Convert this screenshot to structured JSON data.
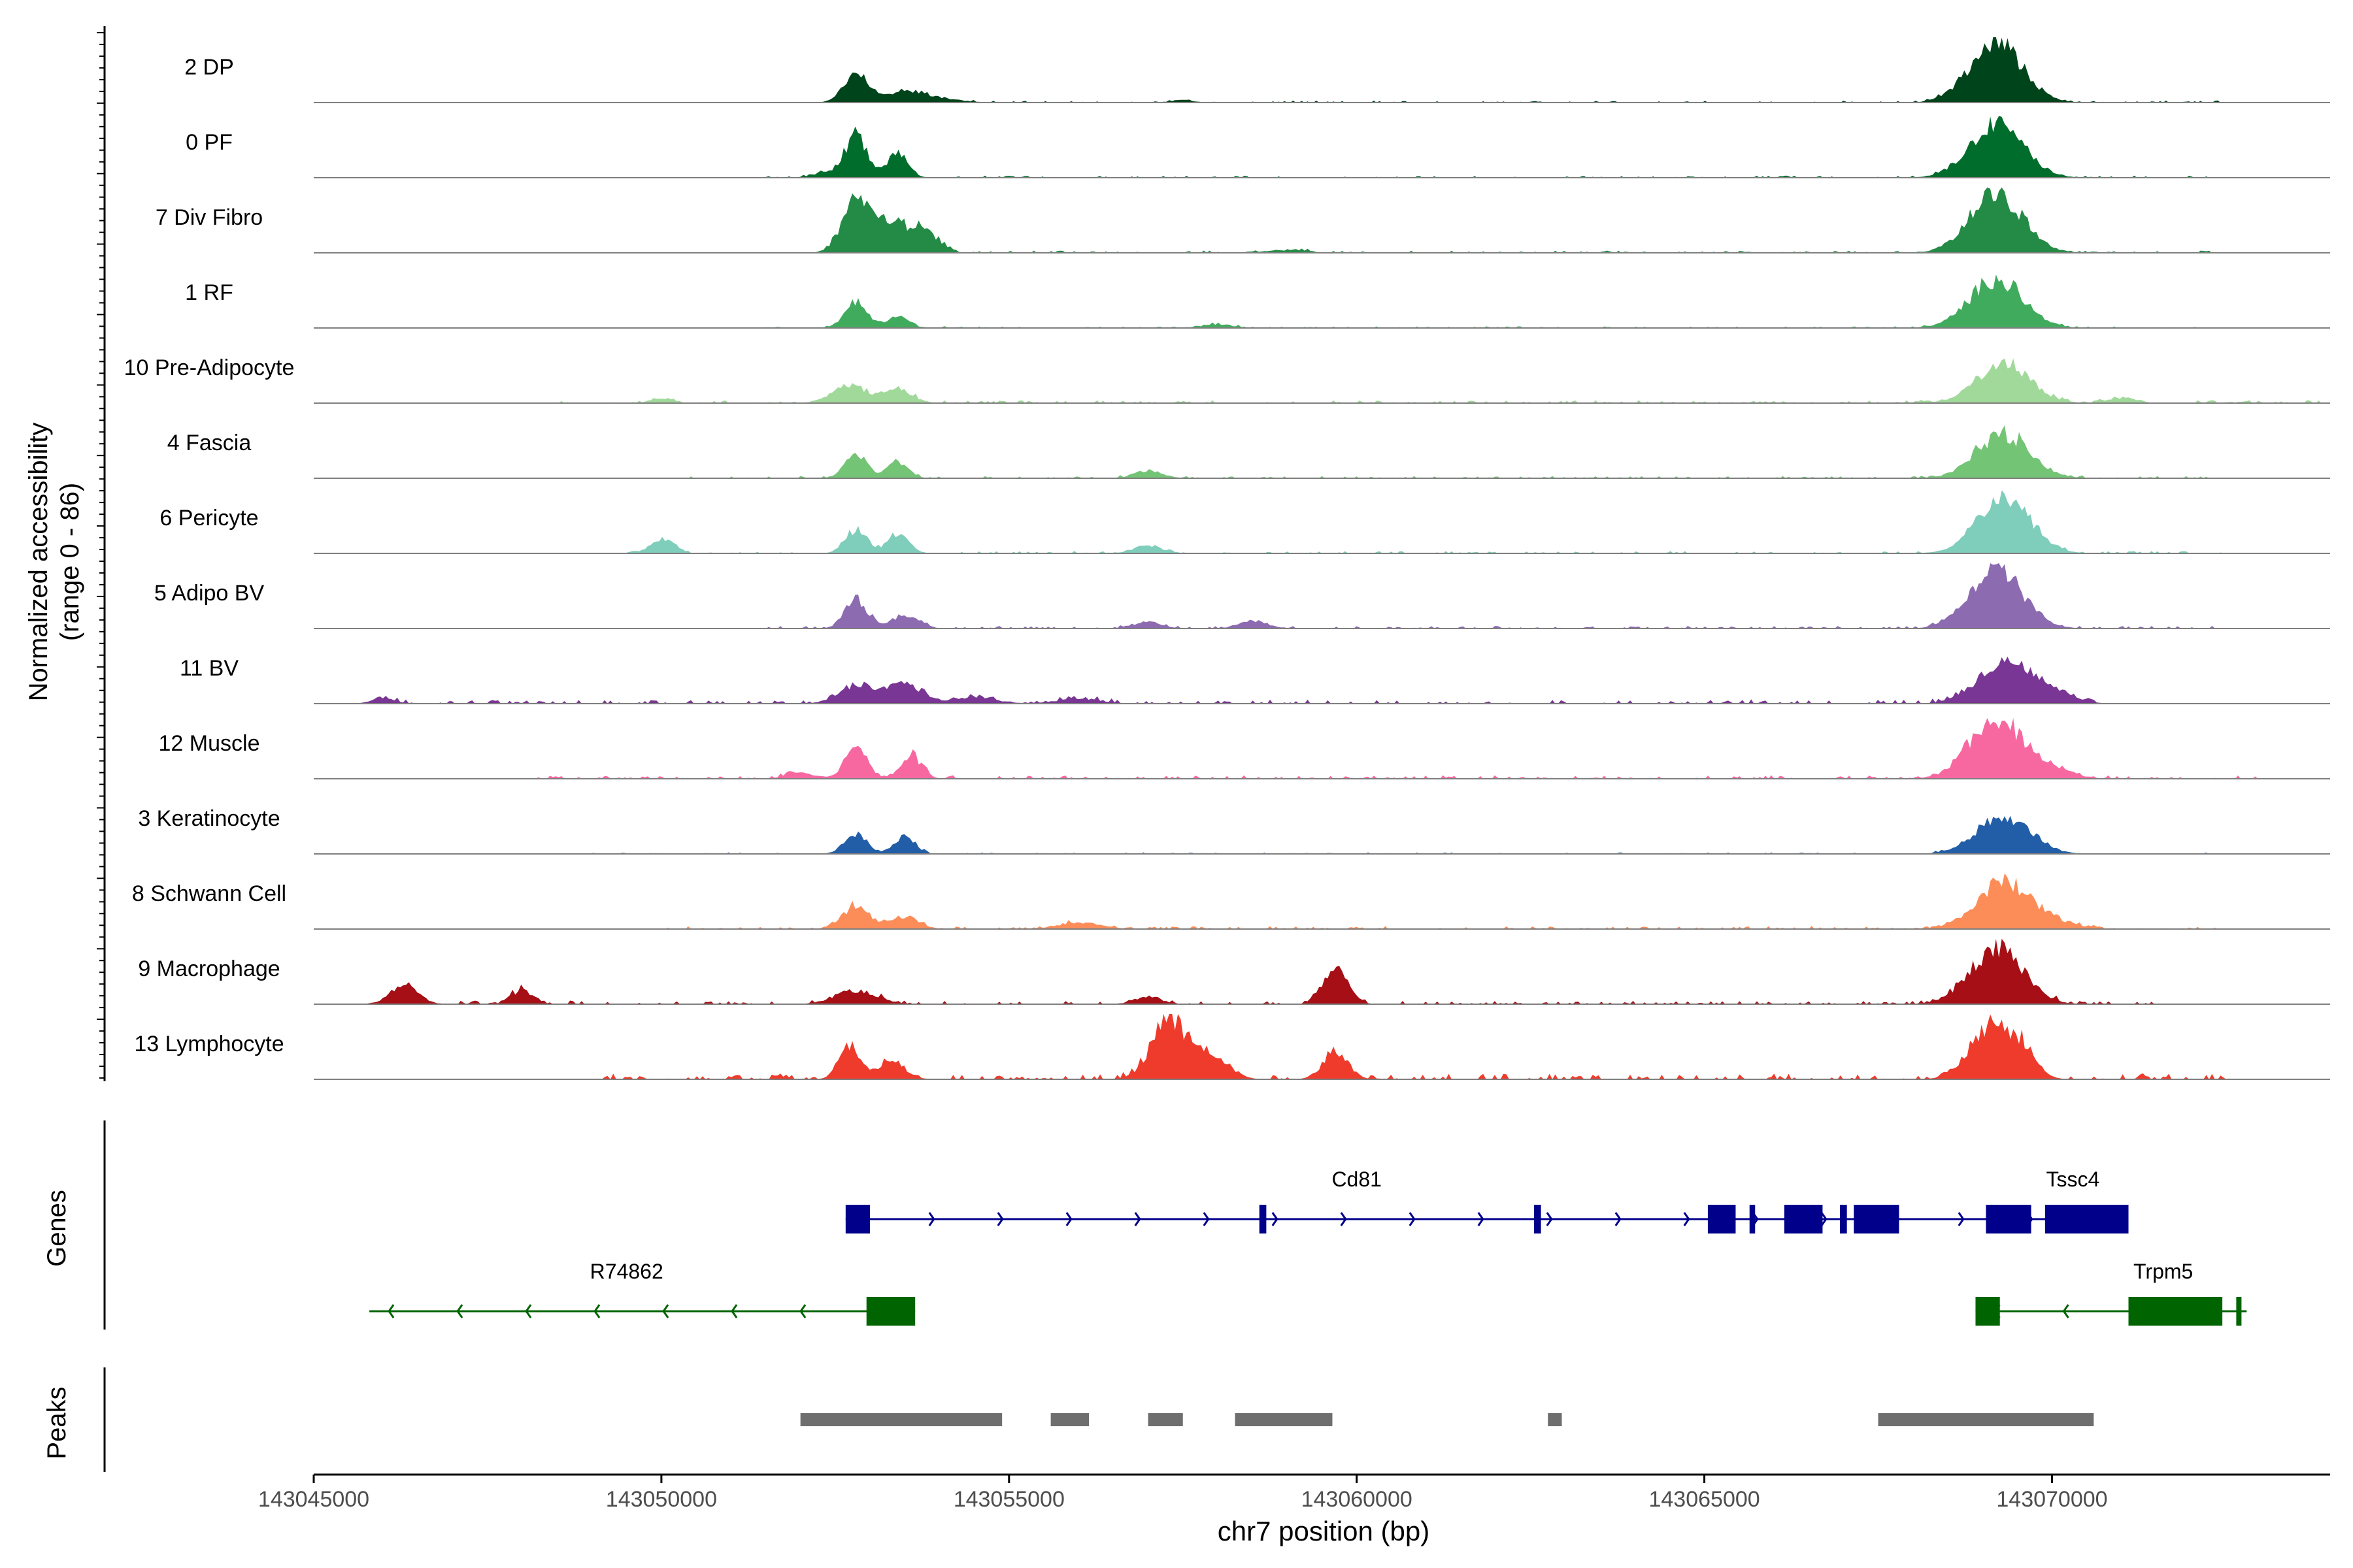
{
  "chart_data": {
    "type": "area",
    "title": "",
    "ylabel": "Normalized accessibility\n(range 0 - 86)",
    "xlabel": "chr7 position (bp)",
    "xlim": [
      143045000,
      143074000
    ],
    "ylim": [
      0,
      86
    ],
    "x_ticks": [
      143045000,
      143050000,
      143055000,
      143060000,
      143065000,
      143070000
    ],
    "x_tick_labels": [
      "143045000",
      "143050000",
      "143055000",
      "143060000",
      "143065000",
      "143070000"
    ],
    "track_labels": {
      "genes": "Genes",
      "peaks": "Peaks"
    },
    "series": [
      {
        "name": "2 DP",
        "color": "#00441b",
        "peaks": [
          [
            143052800,
            44,
            180
          ],
          [
            143053500,
            16,
            250
          ],
          [
            143054000,
            6,
            300
          ],
          [
            143057500,
            4,
            150
          ],
          [
            143069200,
            90,
            380
          ]
        ],
        "noise": 0.7,
        "span": [
          143052400,
          143072500
        ]
      },
      {
        "name": "0 PF",
        "color": "#006d2c",
        "peaks": [
          [
            143052800,
            62,
            160
          ],
          [
            143053400,
            36,
            150
          ],
          [
            143052400,
            8,
            200
          ],
          [
            143069200,
            82,
            380
          ]
        ],
        "noise": 0.7,
        "span": [
          143051500,
          143072500
        ]
      },
      {
        "name": "7 Div Fibro",
        "color": "#238b45",
        "peaks": [
          [
            143052800,
            75,
            200
          ],
          [
            143053300,
            42,
            300
          ],
          [
            143053800,
            26,
            200
          ],
          [
            143059000,
            4,
            300
          ],
          [
            143069200,
            90,
            380
          ]
        ],
        "noise": 0.8,
        "span": [
          143051500,
          143072500
        ]
      },
      {
        "name": "1 RF",
        "color": "#41ab5d",
        "peaks": [
          [
            143052800,
            42,
            160
          ],
          [
            143053400,
            20,
            150
          ],
          [
            143058000,
            6,
            200
          ],
          [
            143069200,
            75,
            380
          ]
        ],
        "noise": 0.6,
        "span": [
          143051500,
          143072500
        ]
      },
      {
        "name": "10 Pre-Adipocyte",
        "color": "#a1d99b",
        "peaks": [
          [
            143052700,
            26,
            250
          ],
          [
            143053400,
            22,
            200
          ],
          [
            143050000,
            8,
            150
          ],
          [
            143069300,
            62,
            380
          ],
          [
            143071000,
            8,
            200
          ]
        ],
        "noise": 1.0,
        "span": [
          143048500,
          143074000
        ]
      },
      {
        "name": "4 Fascia",
        "color": "#74c476",
        "peaks": [
          [
            143052800,
            36,
            160
          ],
          [
            143053400,
            26,
            150
          ],
          [
            143057000,
            12,
            200
          ],
          [
            143069300,
            68,
            380
          ]
        ],
        "noise": 0.8,
        "span": [
          143050000,
          143072500
        ]
      },
      {
        "name": "6 Pericyte",
        "color": "#7fcdbb",
        "peaks": [
          [
            143052800,
            36,
            160
          ],
          [
            143053400,
            28,
            150
          ],
          [
            143050000,
            22,
            160
          ],
          [
            143057000,
            12,
            200
          ],
          [
            143069300,
            85,
            380
          ]
        ],
        "noise": 0.8,
        "span": [
          143049500,
          143072500
        ]
      },
      {
        "name": "5 Adipo BV",
        "color": "#8c6bb1",
        "peaks": [
          [
            143052800,
            44,
            160
          ],
          [
            143053500,
            20,
            200
          ],
          [
            143057000,
            10,
            200
          ],
          [
            143058500,
            12,
            200
          ],
          [
            143069200,
            88,
            380
          ]
        ],
        "noise": 0.9,
        "span": [
          143051500,
          143072500
        ]
      },
      {
        "name": "11 BV",
        "color": "#7a3694",
        "peaks": [
          [
            143052800,
            28,
            250
          ],
          [
            143053500,
            30,
            250
          ],
          [
            143054500,
            10,
            300
          ],
          [
            143056000,
            8,
            300
          ],
          [
            143046000,
            10,
            150
          ],
          [
            143069300,
            60,
            380
          ],
          [
            143070000,
            16,
            300
          ]
        ],
        "noise": 1.5,
        "span": [
          143046000,
          143071000
        ]
      },
      {
        "name": "12 Muscle",
        "color": "#f768a1",
        "peaks": [
          [
            143052800,
            50,
            160
          ],
          [
            143053600,
            34,
            150
          ],
          [
            143052000,
            10,
            200
          ],
          [
            143069200,
            90,
            380
          ],
          [
            143070000,
            14,
            300
          ]
        ],
        "noise": 1.2,
        "span": [
          143048000,
          143073000
        ]
      },
      {
        "name": "3 Keratinocyte",
        "color": "#225ea8",
        "peaks": [
          [
            143052800,
            32,
            160
          ],
          [
            143053500,
            26,
            150
          ],
          [
            143069300,
            58,
            380
          ]
        ],
        "noise": 0.5,
        "span": [
          143049000,
          143072500
        ]
      },
      {
        "name": "8 Schwann Cell",
        "color": "#fc8d59",
        "peaks": [
          [
            143052800,
            34,
            200
          ],
          [
            143053500,
            20,
            200
          ],
          [
            143056000,
            10,
            300
          ],
          [
            143069300,
            72,
            380
          ],
          [
            143070000,
            10,
            300
          ]
        ],
        "noise": 1.0,
        "span": [
          143050000,
          143072500
        ]
      },
      {
        "name": "9 Macrophage",
        "color": "#a50f15",
        "peaks": [
          [
            143046300,
            30,
            200
          ],
          [
            143048000,
            22,
            150
          ],
          [
            143052800,
            20,
            300
          ],
          [
            143057000,
            10,
            200
          ],
          [
            143059700,
            52,
            180
          ],
          [
            143069200,
            85,
            380
          ]
        ],
        "noise": 1.2,
        "span": [
          143046000,
          143071500
        ]
      },
      {
        "name": "13 Lymphocyte",
        "color": "#ef3b2c",
        "peaks": [
          [
            143052700,
            52,
            150
          ],
          [
            143053300,
            28,
            200
          ],
          [
            143057300,
            92,
            250
          ],
          [
            143057900,
            34,
            250
          ],
          [
            143059700,
            42,
            180
          ],
          [
            143069100,
            78,
            300
          ],
          [
            143069600,
            38,
            200
          ]
        ],
        "noise": 2.0,
        "span": [
          143049000,
          143072500
        ]
      }
    ],
    "genes": [
      {
        "name": "Cd81",
        "strand": "+",
        "color": "#00008b",
        "start": 143052650,
        "end": 143071100,
        "exons": [
          [
            143052650,
            143053000
          ],
          [
            143058600,
            143058700
          ],
          [
            143062550,
            143062650
          ],
          [
            143065050,
            143065450
          ],
          [
            143065650,
            143065730
          ],
          [
            143066150,
            143066700
          ],
          [
            143066950,
            143067050
          ],
          [
            143067150,
            143067800
          ]
        ],
        "label_pos": 143060000,
        "row": 1
      },
      {
        "name": "Tssc4",
        "strand": "+",
        "color": "#00008b",
        "start": 143069050,
        "end": 143071100,
        "exons": [
          [
            143069050,
            143069700
          ],
          [
            143069900,
            143071100
          ]
        ],
        "label_pos": 143070300,
        "row": 1,
        "no_line": true
      },
      {
        "name": "R74862",
        "strand": "-",
        "color": "#006400",
        "start": 143045800,
        "end": 143053650,
        "exons": [
          [
            143052950,
            143053650
          ]
        ],
        "label_pos": 143049500,
        "row": 2
      },
      {
        "name": "Trpm5",
        "strand": "-",
        "color": "#006400",
        "start": 143068900,
        "end": 143072800,
        "exons": [
          [
            143068900,
            143069250
          ],
          [
            143071100,
            143072450
          ],
          [
            143072650,
            143072700
          ]
        ],
        "label_pos": 143071600,
        "row": 2
      }
    ],
    "peaks": [
      [
        143052000,
        143054900
      ],
      [
        143055600,
        143056150
      ],
      [
        143057000,
        143057500
      ],
      [
        143058250,
        143059650
      ],
      [
        143062750,
        143062950
      ],
      [
        143067500,
        143070600
      ]
    ]
  }
}
